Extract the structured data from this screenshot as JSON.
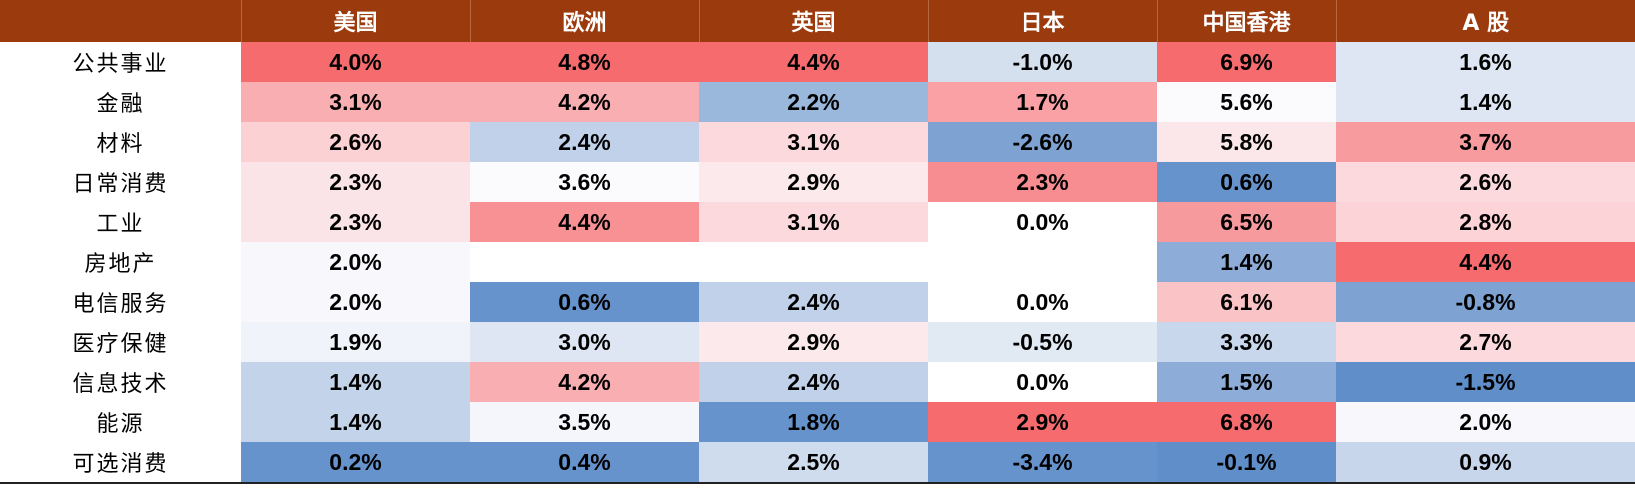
{
  "chart_data": {
    "type": "heatmap",
    "columns": [
      "美国",
      "欧洲",
      "英国",
      "日本",
      "中国香港",
      "A 股"
    ],
    "rows": [
      "公共事业",
      "金融",
      "材料",
      "日常消费",
      "工业",
      "房地产",
      "电信服务",
      "医疗保健",
      "信息技术",
      "能源",
      "可选消费"
    ],
    "values": [
      [
        "4.0%",
        "4.8%",
        "4.4%",
        "-1.0%",
        "6.9%",
        "1.6%"
      ],
      [
        "3.1%",
        "4.2%",
        "2.2%",
        "1.7%",
        "5.6%",
        "1.4%"
      ],
      [
        "2.6%",
        "2.4%",
        "3.1%",
        "-2.6%",
        "5.8%",
        "3.7%"
      ],
      [
        "2.3%",
        "3.6%",
        "2.9%",
        "2.3%",
        "0.6%",
        "2.6%"
      ],
      [
        "2.3%",
        "4.4%",
        "3.1%",
        "0.0%",
        "6.5%",
        "2.8%"
      ],
      [
        "2.0%",
        "",
        "",
        "",
        "1.4%",
        "4.4%"
      ],
      [
        "2.0%",
        "0.6%",
        "2.4%",
        "0.0%",
        "6.1%",
        "-0.8%"
      ],
      [
        "1.9%",
        "3.0%",
        "2.9%",
        "-0.5%",
        "3.3%",
        "2.7%"
      ],
      [
        "1.4%",
        "4.2%",
        "2.4%",
        "0.0%",
        "1.5%",
        "-1.5%"
      ],
      [
        "1.4%",
        "3.5%",
        "1.8%",
        "2.9%",
        "6.8%",
        "2.0%"
      ],
      [
        "0.2%",
        "0.4%",
        "2.5%",
        "-3.4%",
        "-0.1%",
        "0.9%"
      ]
    ],
    "cell_colors": [
      [
        "#f56b6e",
        "#f56b6e",
        "#f56b6e",
        "#d5e0ef",
        "#f56b6e",
        "#dde6f2"
      ],
      [
        "#f9aeb1",
        "#f9aeb1",
        "#9ab7dc",
        "#f9a1a5",
        "#fbfbfe",
        "#dde6f2"
      ],
      [
        "#fbd1d4",
        "#c0d1e9",
        "#fcd9dc",
        "#7ea2d1",
        "#fbe7ea",
        "#f79b9e"
      ],
      [
        "#fbe4e7",
        "#fbfbfe",
        "#fce9ec",
        "#f78d90",
        "#6693cb",
        "#fcd9dc"
      ],
      [
        "#fbe4e7",
        "#f79194",
        "#fcd9dc",
        "#ffffff",
        "#f79a9d",
        "#fcd3d6"
      ],
      [
        "#f8f8fc",
        "#ffffff",
        "#ffffff",
        "#ffffff",
        "#8dacd7",
        "#f56b6e"
      ],
      [
        "#f8f8fc",
        "#6693cb",
        "#c0d1e9",
        "#ffffff",
        "#fac3c6",
        "#7ea2d1"
      ],
      [
        "#f0f3f9",
        "#dde6f2",
        "#fce9ec",
        "#e1e9f3",
        "#c8d7ec",
        "#fcd9dc"
      ],
      [
        "#c2d3ea",
        "#f9aeb1",
        "#c0d1e9",
        "#ffffff",
        "#8dacd7",
        "#5f8ec9"
      ],
      [
        "#c2d3ea",
        "#f4f6fb",
        "#6693cb",
        "#f56b6e",
        "#f56b6e",
        "#f8f8fc"
      ],
      [
        "#6693cb",
        "#6693cb",
        "#cfdcee",
        "#6693cb",
        "#5f8ec9",
        "#c7d6eb"
      ]
    ],
    "colors": {
      "header_bg": "#9b3a0c",
      "header_text": "#ffffff"
    }
  }
}
